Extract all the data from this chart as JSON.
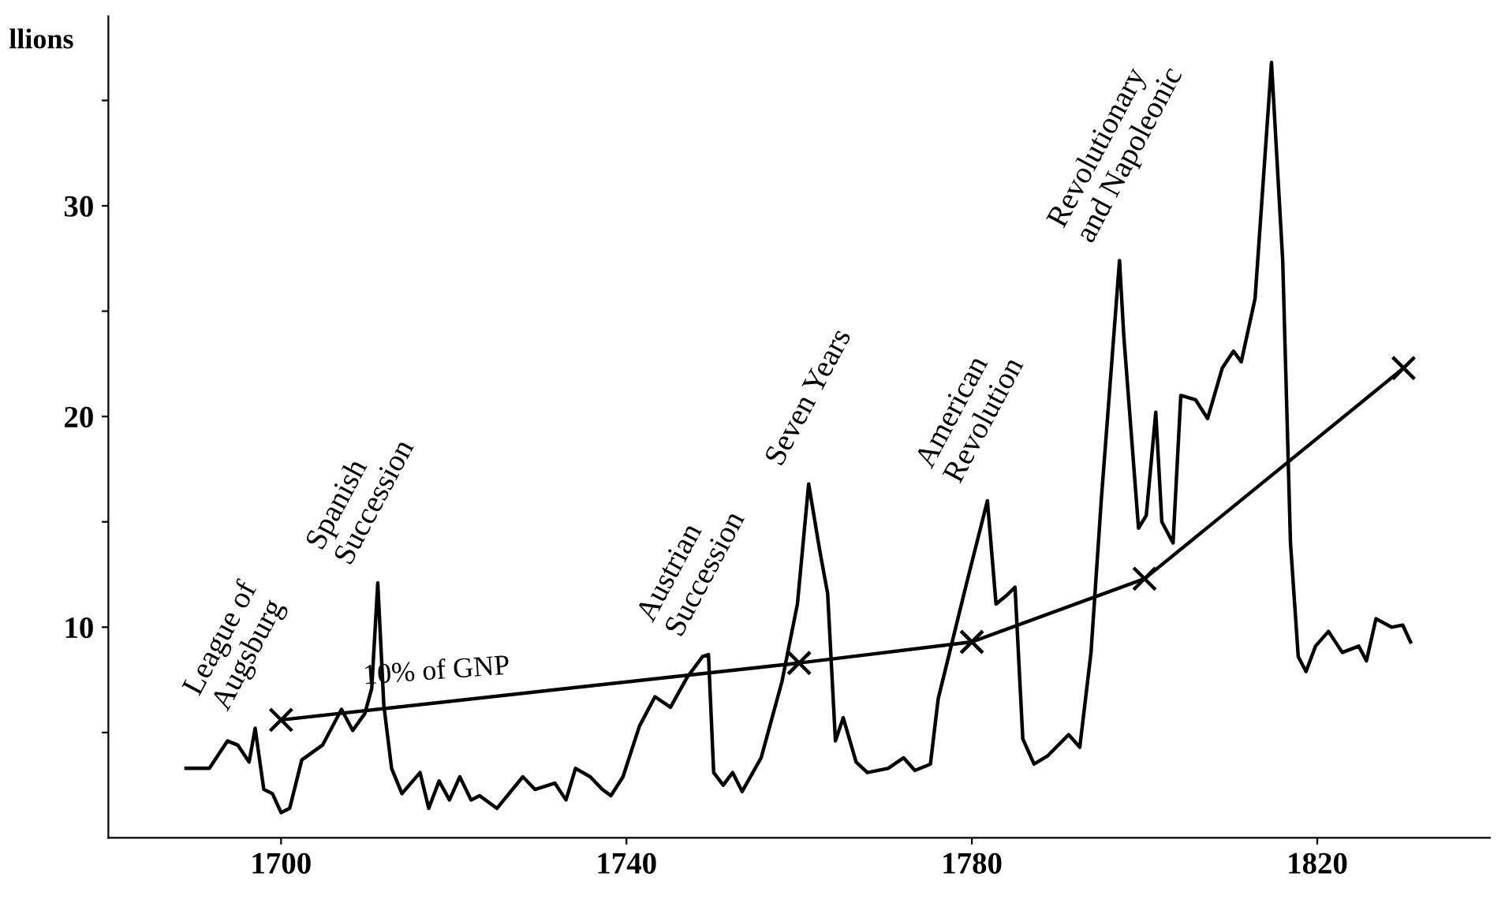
{
  "chart_data": {
    "type": "line",
    "ylabel": "llions",
    "xlim": [
      1680,
      1840
    ],
    "ylim": [
      0,
      39
    ],
    "xticks": [
      1700,
      1740,
      1780,
      1820
    ],
    "yticks": [
      {
        "value": 5,
        "label": null
      },
      10,
      {
        "value": 15,
        "label": null
      },
      20,
      {
        "value": 25,
        "label": null
      },
      30,
      {
        "value": 35,
        "label": null
      }
    ],
    "grid": false,
    "legend": false,
    "series": [
      {
        "color": "#000000",
        "marker": "none",
        "x": [
          1689.0,
          1691.7,
          1693.8,
          1695,
          1696.3,
          1697,
          1698,
          1699,
          1700,
          1701,
          1702.4,
          1704.8,
          1707,
          1708.3,
          1709.7,
          1710.5,
          1711.2,
          1711.9,
          1712.8,
          1714,
          1716.1,
          1717.1,
          1718.3,
          1719.5,
          1720.7,
          1722,
          1723,
          1725,
          1728,
          1729.4,
          1731.7,
          1733,
          1734.1,
          1735.8,
          1737.2,
          1738.2,
          1739.6,
          1741.5,
          1743.3,
          1745.1,
          1747,
          1748.8,
          1749.5,
          1750.1,
          1751.2,
          1752.3,
          1753.4,
          1755.6,
          1758,
          1759.8,
          1761.1,
          1762.4,
          1763.3,
          1764.2,
          1765.1,
          1766.6,
          1767.9,
          1770.3,
          1772.1,
          1773.4,
          1775.2,
          1776.1,
          1777.6,
          1779.4,
          1781.8,
          1782.8,
          1784,
          1785,
          1785.9,
          1787.2,
          1788.8,
          1791.2,
          1792.5,
          1793.8,
          1795,
          1797.1,
          1797.6,
          1799.3,
          1800.2,
          1801.3,
          1802,
          1803.3,
          1804.2,
          1805.9,
          1807.3,
          1809,
          1810.3,
          1811.2,
          1812.8,
          1814.7,
          1816,
          1816.9,
          1817.8,
          1818.7,
          1819.8,
          1821.3,
          1822.9,
          1824.8,
          1825.7,
          1826.8,
          1828.6,
          1829.9,
          1830.8
        ],
        "values": [
          3.3,
          3.3,
          4.6,
          4.4,
          3.6,
          5.2,
          2.3,
          2.1,
          1.2,
          1.4,
          3.7,
          4.4,
          6.1,
          5.1,
          5.9,
          7.1,
          12.1,
          6.3,
          3.3,
          2.1,
          3.1,
          1.4,
          2.7,
          1.8,
          2.9,
          1.8,
          2.0,
          1.4,
          2.9,
          2.3,
          2.6,
          1.8,
          3.3,
          2.9,
          2.3,
          2.0,
          2.9,
          5.3,
          6.7,
          6.2,
          7.6,
          8.6,
          8.7,
          3.1,
          2.5,
          3.1,
          2.2,
          3.8,
          7.4,
          11.1,
          16.8,
          13.6,
          11.6,
          4.6,
          5.7,
          3.6,
          3.1,
          3.3,
          3.8,
          3.2,
          3.5,
          6.6,
          9.1,
          12.1,
          16.0,
          11.1,
          11.5,
          11.9,
          4.7,
          3.5,
          3.9,
          4.9,
          4.3,
          8.8,
          16.1,
          27.4,
          23.8,
          14.7,
          15.3,
          20.2,
          15.0,
          14.0,
          21.0,
          20.8,
          19.9,
          22.3,
          23.1,
          22.6,
          25.6,
          36.8,
          27.4,
          14.0,
          8.6,
          7.9,
          9.1,
          9.8,
          8.8,
          9.1,
          8.4,
          10.4,
          10.0,
          10.1,
          9.3
        ]
      },
      {
        "name": "10% of GNP",
        "color": "#000000",
        "marker": "cross",
        "x": [
          1700,
          1760,
          1780,
          1800,
          1830
        ],
        "values": [
          5.6,
          8.3,
          9.3,
          12.3,
          22.3
        ]
      }
    ],
    "annotations": [
      {
        "text": "League of\nAugsburg",
        "x": 1697,
        "y": 5.2
      },
      {
        "text": "Spanish\nSuccession",
        "x": 1711.2,
        "y": 12.1
      },
      {
        "text": "Austrian\nSuccession",
        "x": 1749.5,
        "y": 8.7
      },
      {
        "text": "Seven Years",
        "x": 1761.1,
        "y": 16.8
      },
      {
        "text": "American\nRevolution",
        "x": 1781.8,
        "y": 16.0
      },
      {
        "text": "Revolutionary\nand Napoleonic",
        "x": 1797.1,
        "y": 27.4
      }
    ]
  }
}
